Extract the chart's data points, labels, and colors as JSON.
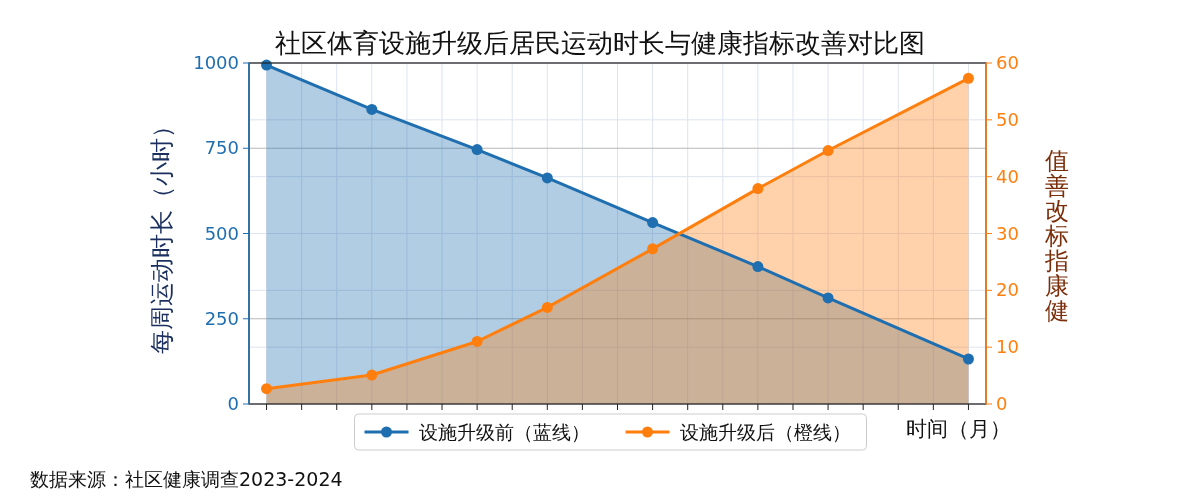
{
  "chart_data": {
    "type": "area",
    "title": "社区体育设施升级后居民运动时长与健康指标改善对比图",
    "xlabel": "时间（月）",
    "ylabel": "每周运动时长（小时）",
    "y2label": "健康指标改善值",
    "annotations": [
      "数据来源：社区健康调查2023-2024"
    ],
    "categories": [
      null,
      null,
      null,
      null,
      null,
      null,
      null,
      null,
      null,
      null,
      null,
      null,
      null,
      null,
      null,
      null,
      null,
      null,
      null,
      null,
      null
    ],
    "ylim": [
      0,
      1000
    ],
    "yticks": [
      0,
      250,
      500,
      750,
      1000
    ],
    "y2lim": [
      0,
      60
    ],
    "y2ticks": [
      0,
      10,
      20,
      30,
      40,
      50,
      60
    ],
    "grid": true,
    "legend": "bottom",
    "marker": "circle",
    "line_style": "solid",
    "series": [
      {
        "name": "设施升级前（蓝线）",
        "color": "#1f6fb0",
        "values": [
          994,
          null,
          null,
          864,
          null,
          null,
          746,
          null,
          663,
          null,
          null,
          532,
          null,
          null,
          403,
          null,
          311,
          null,
          null,
          null,
          132
        ]
      },
      {
        "name": "设施升级后（橙线）",
        "color": "#ff7f0e",
        "axis": "y2",
        "values": [
          2.7,
          null,
          null,
          5.1,
          null,
          null,
          11.0,
          null,
          17.0,
          null,
          null,
          27.3,
          null,
          null,
          37.9,
          null,
          44.6,
          null,
          null,
          null,
          57.3
        ]
      }
    ]
  }
}
